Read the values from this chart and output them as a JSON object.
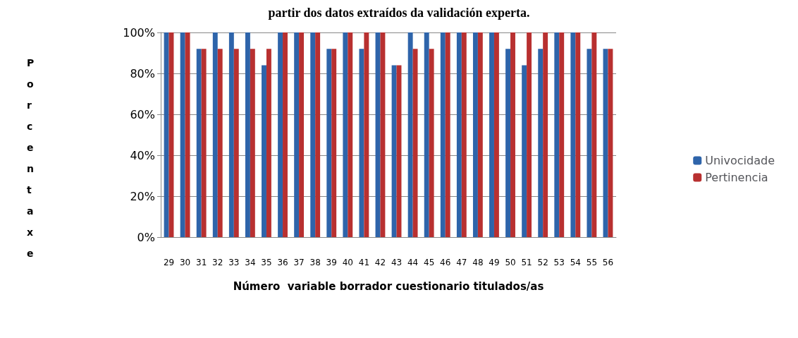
{
  "chart_data": {
    "type": "bar",
    "title": "partir dos datos extraídos da validación experta.",
    "xlabel": "Número  variable borrador cuestionario titulados/as",
    "ylabel": "Porcentaxe",
    "categories": [
      "29",
      "30",
      "31",
      "32",
      "33",
      "34",
      "35",
      "36",
      "37",
      "38",
      "39",
      "40",
      "41",
      "42",
      "43",
      "44",
      "45",
      "46",
      "47",
      "48",
      "49",
      "50",
      "51",
      "52",
      "53",
      "54",
      "55",
      "56"
    ],
    "series": [
      {
        "name": "Univocidade",
        "color": "#2e64aa",
        "values": [
          100,
          100,
          92,
          100,
          100,
          100,
          84,
          100,
          100,
          100,
          92,
          100,
          92,
          100,
          84,
          100,
          100,
          100,
          100,
          100,
          100,
          92,
          84,
          92,
          100,
          100,
          92,
          92
        ]
      },
      {
        "name": "Pertinencia",
        "color": "#b83030",
        "values": [
          100,
          100,
          92,
          92,
          92,
          92,
          92,
          100,
          100,
          100,
          92,
          100,
          100,
          100,
          84,
          92,
          92,
          100,
          100,
          100,
          100,
          100,
          100,
          100,
          100,
          100,
          100,
          92
        ]
      }
    ],
    "ylim": [
      0,
      100
    ],
    "yticks": [
      {
        "value": 0,
        "label": "0%"
      },
      {
        "value": 20,
        "label": "20%"
      },
      {
        "value": 40,
        "label": "40%"
      },
      {
        "value": 60,
        "label": "60%"
      },
      {
        "value": 80,
        "label": "80%"
      },
      {
        "value": 100,
        "label": "100%"
      }
    ],
    "grid": "y",
    "legend": "right"
  }
}
